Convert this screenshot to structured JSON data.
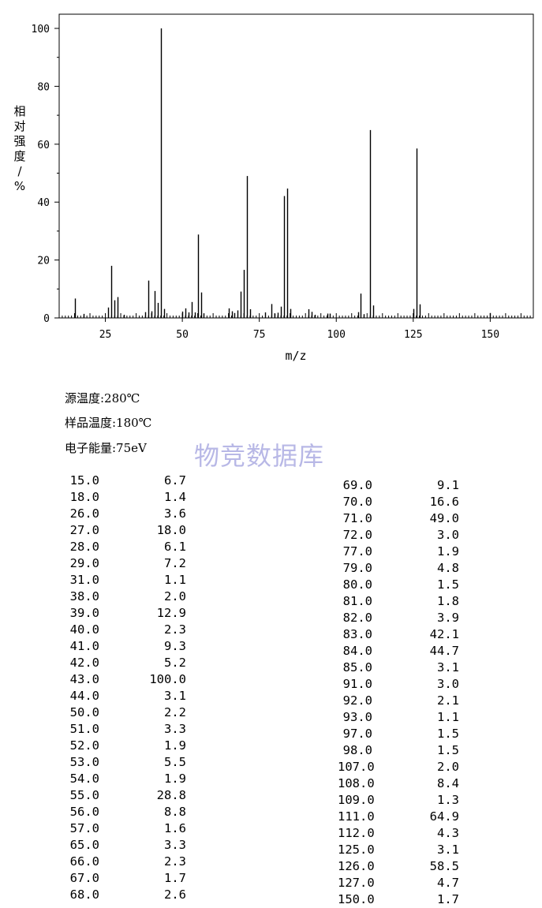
{
  "chart_data": {
    "type": "bar",
    "xlabel": "m/z",
    "ylabel": "相对强度/%",
    "xlim": [
      10,
      164
    ],
    "ylim": [
      0,
      100
    ],
    "x_ticks": [
      25,
      50,
      75,
      100,
      125,
      150
    ],
    "y_ticks": [
      0,
      20,
      40,
      60,
      80,
      100
    ],
    "color": "#000000",
    "peaks": [
      {
        "mz": 15.0,
        "intensity": 6.7
      },
      {
        "mz": 18.0,
        "intensity": 1.4
      },
      {
        "mz": 26.0,
        "intensity": 3.6
      },
      {
        "mz": 27.0,
        "intensity": 18.0
      },
      {
        "mz": 28.0,
        "intensity": 6.1
      },
      {
        "mz": 29.0,
        "intensity": 7.2
      },
      {
        "mz": 31.0,
        "intensity": 1.1
      },
      {
        "mz": 38.0,
        "intensity": 2.0
      },
      {
        "mz": 39.0,
        "intensity": 12.9
      },
      {
        "mz": 40.0,
        "intensity": 2.3
      },
      {
        "mz": 41.0,
        "intensity": 9.3
      },
      {
        "mz": 42.0,
        "intensity": 5.2
      },
      {
        "mz": 43.0,
        "intensity": 100.0
      },
      {
        "mz": 44.0,
        "intensity": 3.1
      },
      {
        "mz": 50.0,
        "intensity": 2.2
      },
      {
        "mz": 51.0,
        "intensity": 3.3
      },
      {
        "mz": 52.0,
        "intensity": 1.9
      },
      {
        "mz": 53.0,
        "intensity": 5.5
      },
      {
        "mz": 54.0,
        "intensity": 1.9
      },
      {
        "mz": 55.0,
        "intensity": 28.8
      },
      {
        "mz": 56.0,
        "intensity": 8.8
      },
      {
        "mz": 57.0,
        "intensity": 1.6
      },
      {
        "mz": 65.0,
        "intensity": 3.3
      },
      {
        "mz": 66.0,
        "intensity": 2.3
      },
      {
        "mz": 67.0,
        "intensity": 1.7
      },
      {
        "mz": 68.0,
        "intensity": 2.6
      },
      {
        "mz": 69.0,
        "intensity": 9.1
      },
      {
        "mz": 70.0,
        "intensity": 16.6
      },
      {
        "mz": 71.0,
        "intensity": 49.0
      },
      {
        "mz": 72.0,
        "intensity": 3.0
      },
      {
        "mz": 77.0,
        "intensity": 1.9
      },
      {
        "mz": 79.0,
        "intensity": 4.8
      },
      {
        "mz": 80.0,
        "intensity": 1.5
      },
      {
        "mz": 81.0,
        "intensity": 1.8
      },
      {
        "mz": 82.0,
        "intensity": 3.9
      },
      {
        "mz": 83.0,
        "intensity": 42.1
      },
      {
        "mz": 84.0,
        "intensity": 44.7
      },
      {
        "mz": 85.0,
        "intensity": 3.1
      },
      {
        "mz": 91.0,
        "intensity": 3.0
      },
      {
        "mz": 92.0,
        "intensity": 2.1
      },
      {
        "mz": 93.0,
        "intensity": 1.1
      },
      {
        "mz": 97.0,
        "intensity": 1.5
      },
      {
        "mz": 98.0,
        "intensity": 1.5
      },
      {
        "mz": 107.0,
        "intensity": 2.0
      },
      {
        "mz": 108.0,
        "intensity": 8.4
      },
      {
        "mz": 109.0,
        "intensity": 1.3
      },
      {
        "mz": 111.0,
        "intensity": 64.9
      },
      {
        "mz": 112.0,
        "intensity": 4.3
      },
      {
        "mz": 125.0,
        "intensity": 3.1
      },
      {
        "mz": 126.0,
        "intensity": 58.5
      },
      {
        "mz": 127.0,
        "intensity": 4.7
      },
      {
        "mz": 150.0,
        "intensity": 1.7
      }
    ]
  },
  "conditions": {
    "source_temp": "源温度:280℃",
    "sample_temp": "样品温度:180℃",
    "electron_energy": "电子能量:75eV"
  },
  "watermark": "物竞数据库",
  "table": {
    "left": [
      [
        "15.0",
        "6.7"
      ],
      [
        "18.0",
        "1.4"
      ],
      [
        "26.0",
        "3.6"
      ],
      [
        "27.0",
        "18.0"
      ],
      [
        "28.0",
        "6.1"
      ],
      [
        "29.0",
        "7.2"
      ],
      [
        "31.0",
        "1.1"
      ],
      [
        "38.0",
        "2.0"
      ],
      [
        "39.0",
        "12.9"
      ],
      [
        "40.0",
        "2.3"
      ],
      [
        "41.0",
        "9.3"
      ],
      [
        "42.0",
        "5.2"
      ],
      [
        "43.0",
        "100.0"
      ],
      [
        "44.0",
        "3.1"
      ],
      [
        "50.0",
        "2.2"
      ],
      [
        "51.0",
        "3.3"
      ],
      [
        "52.0",
        "1.9"
      ],
      [
        "53.0",
        "5.5"
      ],
      [
        "54.0",
        "1.9"
      ],
      [
        "55.0",
        "28.8"
      ],
      [
        "56.0",
        "8.8"
      ],
      [
        "57.0",
        "1.6"
      ],
      [
        "65.0",
        "3.3"
      ],
      [
        "66.0",
        "2.3"
      ],
      [
        "67.0",
        "1.7"
      ],
      [
        "68.0",
        "2.6"
      ]
    ],
    "right": [
      [
        "69.0",
        "9.1"
      ],
      [
        "70.0",
        "16.6"
      ],
      [
        "71.0",
        "49.0"
      ],
      [
        "72.0",
        "3.0"
      ],
      [
        "77.0",
        "1.9"
      ],
      [
        "79.0",
        "4.8"
      ],
      [
        "80.0",
        "1.5"
      ],
      [
        "81.0",
        "1.8"
      ],
      [
        "82.0",
        "3.9"
      ],
      [
        "83.0",
        "42.1"
      ],
      [
        "84.0",
        "44.7"
      ],
      [
        "85.0",
        "3.1"
      ],
      [
        "91.0",
        "3.0"
      ],
      [
        "92.0",
        "2.1"
      ],
      [
        "93.0",
        "1.1"
      ],
      [
        "97.0",
        "1.5"
      ],
      [
        "98.0",
        "1.5"
      ],
      [
        "107.0",
        "2.0"
      ],
      [
        "108.0",
        "8.4"
      ],
      [
        "109.0",
        "1.3"
      ],
      [
        "111.0",
        "64.9"
      ],
      [
        "112.0",
        "4.3"
      ],
      [
        "125.0",
        "3.1"
      ],
      [
        "126.0",
        "58.5"
      ],
      [
        "127.0",
        "4.7"
      ],
      [
        "150.0",
        "1.7"
      ]
    ]
  }
}
